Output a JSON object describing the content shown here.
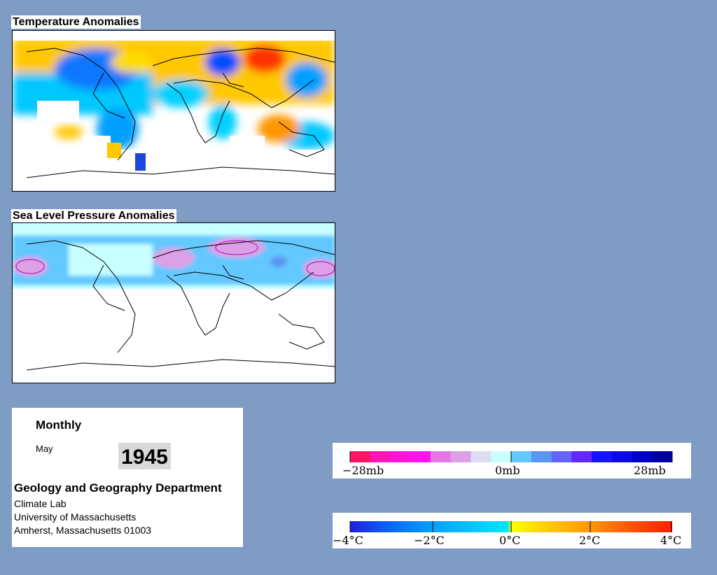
{
  "temperature_panel": {
    "title": "Temperature Anomalies"
  },
  "pressure_panel": {
    "title": "Sea Level Pressure Anomalies"
  },
  "info": {
    "frequency": "Monthly",
    "month": "May",
    "year": "1945",
    "department": "Geology and Geography Department",
    "lab": "Climate Lab",
    "university": "University of Massachusetts",
    "address": "Amherst, Massachusetts 01003"
  },
  "pressure_legend": {
    "labels": [
      "−28mb",
      "0mb",
      "28mb"
    ],
    "colors": [
      "#ff1464",
      "#ff14b4",
      "#ff14dc",
      "#ff14f0",
      "#e678e6",
      "#dca0e6",
      "#dcdcf5",
      "#c8ffff",
      "#64c8ff",
      "#5a96f0",
      "#6464ff",
      "#6428ff",
      "#1414ff",
      "#0a0ae6",
      "#0000c8",
      "#0000a0"
    ]
  },
  "temperature_legend": {
    "labels": [
      "−4°C",
      "−2°C",
      "0°C",
      "2°C",
      "4°C"
    ],
    "colors": [
      "#1e1edc",
      "#0a64ff",
      "#00a0ff",
      "#00d2ff",
      "#ffff00",
      "#ffc800",
      "#ff9600",
      "#ff5000",
      "#ff1e00"
    ]
  }
}
